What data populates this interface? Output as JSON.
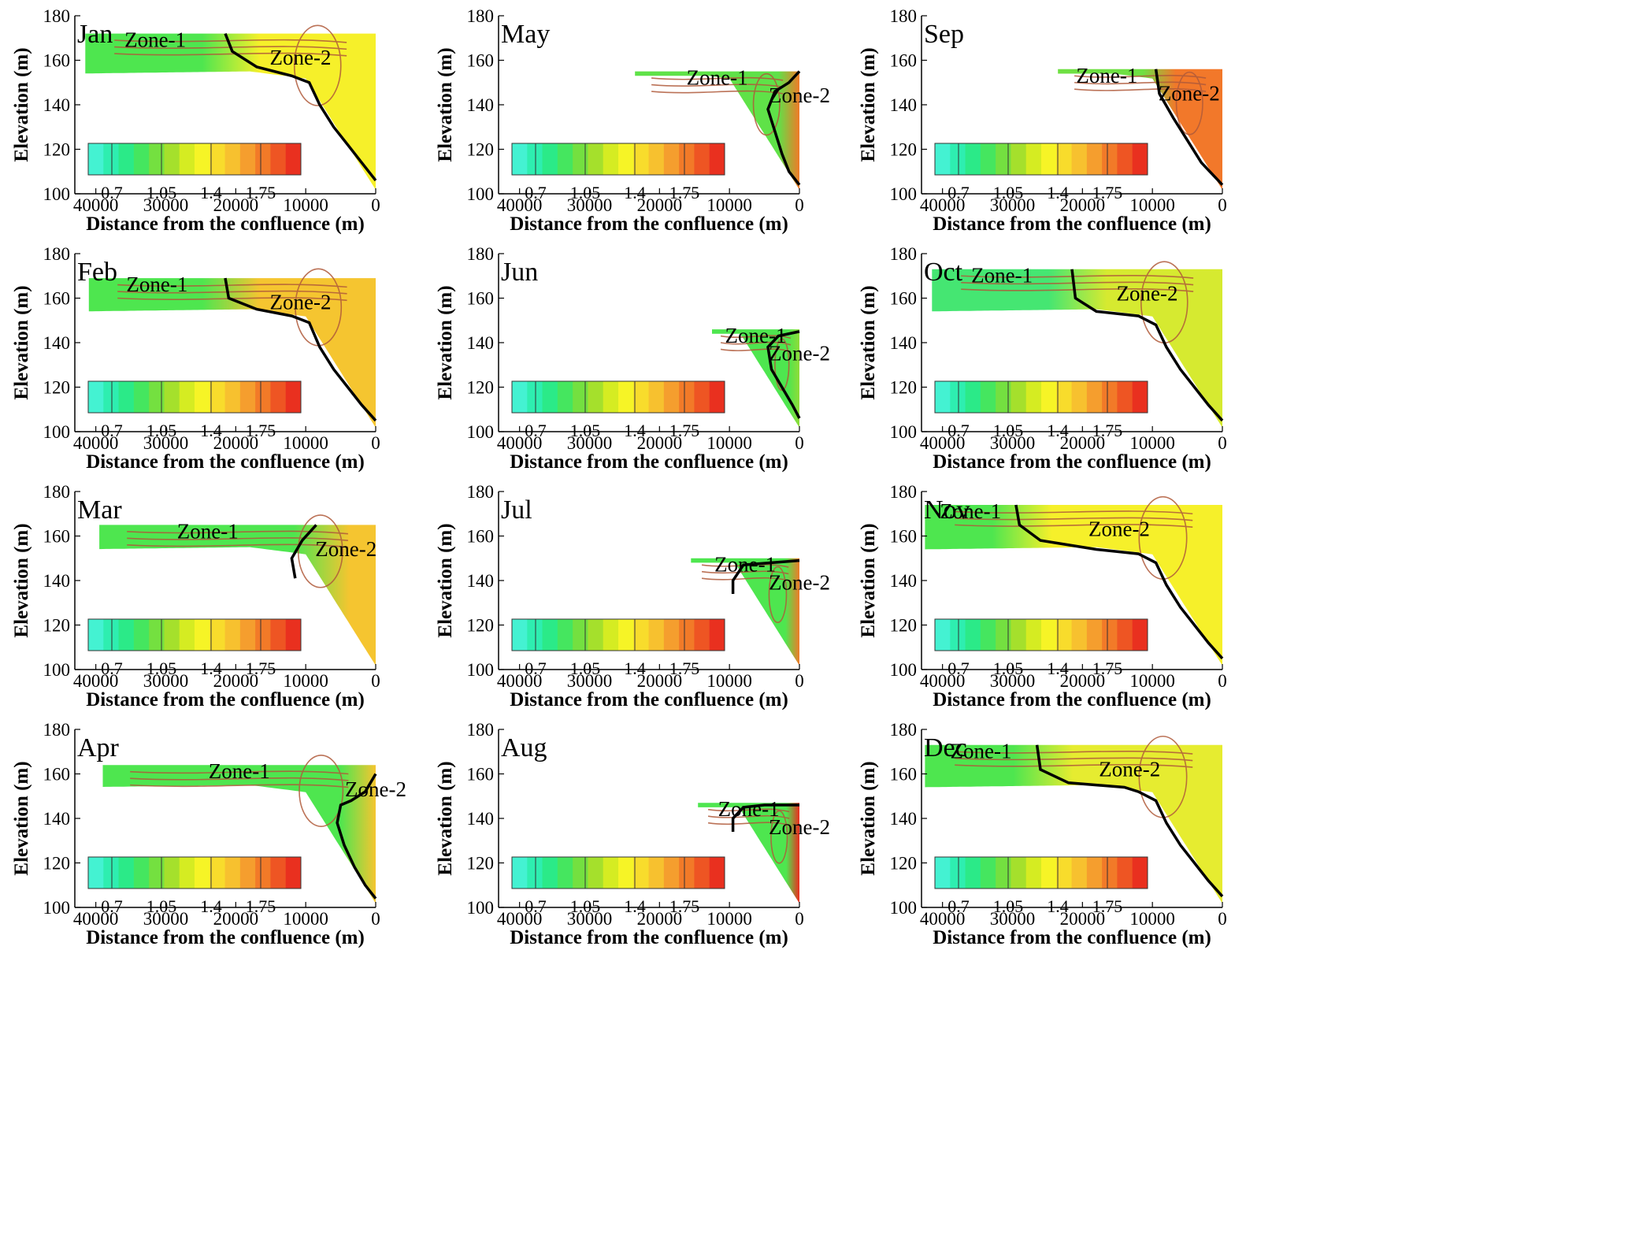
{
  "figure": {
    "tick_labels_x": [
      "40000",
      "30000",
      "20000",
      "10000",
      "0"
    ],
    "tick_labels_y": [
      "100",
      "120",
      "140",
      "160",
      "180"
    ],
    "xlabel": "Distance from the confluence (m)",
    "ylabel": "Elevation (m)",
    "colorbar_labels": [
      "0.7",
      "1.05",
      "1.4",
      "1.75"
    ],
    "colorbar_colors": [
      "#44f2d2",
      "#2eeeb0",
      "#2bea88",
      "#45e65f",
      "#74e040",
      "#a5e02c",
      "#d5ec22",
      "#f6f426",
      "#f8dc2c",
      "#f7c12f",
      "#f59e2e",
      "#f27a28",
      "#ee5523",
      "#e9301f"
    ],
    "streamline_color": "#b05a3a",
    "boundary_color": "#000000"
  },
  "chart_data": [
    {
      "type": "heatmap",
      "title": "Jan",
      "xlabel": "Distance from the confluence (m)",
      "ylabel": "Elevation (m)",
      "xlim": [
        43000,
        0
      ],
      "ylim": [
        100,
        180
      ],
      "xticks": [
        40000,
        30000,
        20000,
        10000,
        0
      ],
      "yticks": [
        100,
        120,
        140,
        160,
        180
      ],
      "surface_elevation": 172,
      "upstream_extent": 41500,
      "zone_labels": [
        "Zone-1",
        "Zone-2"
      ],
      "zone1_color": "#4ee64f",
      "zone2_color": "#f6f02a",
      "boundary": [
        [
          21500,
          172
        ],
        [
          20500,
          164
        ],
        [
          17000,
          157
        ],
        [
          12000,
          153
        ],
        [
          9500,
          150
        ],
        [
          8000,
          140
        ],
        [
          6000,
          130
        ],
        [
          4000,
          122
        ],
        [
          2000,
          114
        ],
        [
          0,
          106
        ]
      ]
    },
    {
      "type": "heatmap",
      "title": "May",
      "xlabel": "Distance from the confluence (m)",
      "ylabel": "Elevation (m)",
      "xlim": [
        43000,
        0
      ],
      "ylim": [
        100,
        180
      ],
      "xticks": [
        40000,
        30000,
        20000,
        10000,
        0
      ],
      "yticks": [
        100,
        120,
        140,
        160,
        180
      ],
      "surface_elevation": 155,
      "upstream_extent": 23500,
      "zone_labels": [
        "Zone-1",
        "Zone-2"
      ],
      "zone1_color": "#5fe248",
      "zone2_color": "#f07a28",
      "boundary": [
        [
          0,
          155
        ],
        [
          1500,
          150
        ],
        [
          3500,
          146
        ],
        [
          4500,
          138
        ],
        [
          3500,
          128
        ],
        [
          2500,
          118
        ],
        [
          1500,
          110
        ],
        [
          0,
          104
        ]
      ]
    },
    {
      "type": "heatmap",
      "title": "Sep",
      "xlabel": "Distance from the confluence (m)",
      "ylabel": "Elevation (m)",
      "xlim": [
        43000,
        0
      ],
      "ylim": [
        100,
        180
      ],
      "xticks": [
        40000,
        30000,
        20000,
        10000,
        0
      ],
      "yticks": [
        100,
        120,
        140,
        160,
        180
      ],
      "surface_elevation": 156,
      "upstream_extent": 23500,
      "zone_labels": [
        "Zone-1",
        "Zone-2"
      ],
      "zone1_color": "#6fe043",
      "zone2_color": "#f2782a",
      "boundary": [
        [
          9500,
          156
        ],
        [
          9000,
          145
        ],
        [
          7000,
          134
        ],
        [
          5000,
          124
        ],
        [
          3000,
          114
        ],
        [
          0,
          104
        ]
      ]
    },
    {
      "type": "heatmap",
      "title": "Feb",
      "xlabel": "Distance from the confluence (m)",
      "ylabel": "Elevation (m)",
      "xlim": [
        43000,
        0
      ],
      "ylim": [
        100,
        180
      ],
      "xticks": [
        40000,
        30000,
        20000,
        10000,
        0
      ],
      "yticks": [
        100,
        120,
        140,
        160,
        180
      ],
      "surface_elevation": 169,
      "upstream_extent": 41000,
      "zone_labels": [
        "Zone-1",
        "Zone-2"
      ],
      "zone1_color": "#4ee64f",
      "zone2_color": "#f5c530",
      "boundary": [
        [
          21500,
          169
        ],
        [
          21000,
          160
        ],
        [
          17000,
          155
        ],
        [
          12000,
          152
        ],
        [
          9500,
          149
        ],
        [
          8000,
          138
        ],
        [
          6000,
          128
        ],
        [
          4000,
          120
        ],
        [
          2000,
          112
        ],
        [
          0,
          105
        ]
      ]
    },
    {
      "type": "heatmap",
      "title": "Jun",
      "xlabel": "Distance from the confluence (m)",
      "ylabel": "Elevation (m)",
      "xlim": [
        43000,
        0
      ],
      "ylim": [
        100,
        180
      ],
      "xticks": [
        40000,
        30000,
        20000,
        10000,
        0
      ],
      "yticks": [
        100,
        120,
        140,
        160,
        180
      ],
      "surface_elevation": 146,
      "upstream_extent": 12500,
      "zone_labels": [
        "Zone-1",
        "Zone-2"
      ],
      "zone1_color": "#4ee64f",
      "zone2_color": "#8fdc38",
      "boundary": [
        [
          0,
          145
        ],
        [
          3000,
          143
        ],
        [
          4500,
          138
        ],
        [
          4000,
          128
        ],
        [
          2500,
          120
        ],
        [
          1000,
          112
        ],
        [
          0,
          106
        ]
      ]
    },
    {
      "type": "heatmap",
      "title": "Oct",
      "xlabel": "Distance from the confluence (m)",
      "ylabel": "Elevation (m)",
      "xlim": [
        43000,
        0
      ],
      "ylim": [
        100,
        180
      ],
      "xticks": [
        40000,
        30000,
        20000,
        10000,
        0
      ],
      "yticks": [
        100,
        120,
        140,
        160,
        180
      ],
      "surface_elevation": 173,
      "upstream_extent": 41500,
      "zone_labels": [
        "Zone-1",
        "Zone-2"
      ],
      "zone1_color": "#45e672",
      "zone2_color": "#d6ea30",
      "boundary": [
        [
          21500,
          173
        ],
        [
          21000,
          160
        ],
        [
          18000,
          154
        ],
        [
          12000,
          152
        ],
        [
          9500,
          148
        ],
        [
          8000,
          138
        ],
        [
          6000,
          128
        ],
        [
          4000,
          120
        ],
        [
          2000,
          112
        ],
        [
          0,
          105
        ]
      ]
    },
    {
      "type": "heatmap",
      "title": "Mar",
      "xlabel": "Distance from the confluence (m)",
      "ylabel": "Elevation (m)",
      "xlim": [
        43000,
        0
      ],
      "ylim": [
        100,
        180
      ],
      "xticks": [
        40000,
        30000,
        20000,
        10000,
        0
      ],
      "yticks": [
        100,
        120,
        140,
        160,
        180
      ],
      "surface_elevation": 165,
      "upstream_extent": 39500,
      "zone_labels": [
        "Zone-1",
        "Zone-2"
      ],
      "zone1_color": "#4ee64f",
      "zone2_color": "#f5c530",
      "boundary": [
        [
          8500,
          165
        ],
        [
          10500,
          158
        ],
        [
          12000,
          150
        ],
        [
          11500,
          141
        ]
      ]
    },
    {
      "type": "heatmap",
      "title": "Jul",
      "xlabel": "Distance from the confluence (m)",
      "ylabel": "Elevation (m)",
      "xlim": [
        43000,
        0
      ],
      "ylim": [
        100,
        180
      ],
      "xticks": [
        40000,
        30000,
        20000,
        10000,
        0
      ],
      "yticks": [
        100,
        120,
        140,
        160,
        180
      ],
      "surface_elevation": 150,
      "upstream_extent": 15500,
      "zone_labels": [
        "Zone-1",
        "Zone-2"
      ],
      "zone1_color": "#4ee64f",
      "zone2_color": "#f07a28",
      "boundary": [
        [
          0,
          149
        ],
        [
          4000,
          148
        ],
        [
          8000,
          147
        ],
        [
          9500,
          140
        ],
        [
          9500,
          134
        ]
      ]
    },
    {
      "type": "heatmap",
      "title": "Nov",
      "xlabel": "Distance from the confluence (m)",
      "ylabel": "Elevation (m)",
      "xlim": [
        43000,
        0
      ],
      "ylim": [
        100,
        180
      ],
      "xticks": [
        40000,
        30000,
        20000,
        10000,
        0
      ],
      "yticks": [
        100,
        120,
        140,
        160,
        180
      ],
      "surface_elevation": 174,
      "upstream_extent": 42500,
      "zone_labels": [
        "Zone-1",
        "Zone-2"
      ],
      "zone1_color": "#4ee64f",
      "zone2_color": "#f6f02a",
      "boundary": [
        [
          29500,
          174
        ],
        [
          29000,
          165
        ],
        [
          26000,
          158
        ],
        [
          18000,
          154
        ],
        [
          12000,
          152
        ],
        [
          9500,
          148
        ],
        [
          8000,
          138
        ],
        [
          6000,
          128
        ],
        [
          4000,
          120
        ],
        [
          2000,
          112
        ],
        [
          0,
          105
        ]
      ]
    },
    {
      "type": "heatmap",
      "title": "Apr",
      "xlabel": "Distance from the confluence (m)",
      "ylabel": "Elevation (m)",
      "xlim": [
        43000,
        0
      ],
      "ylim": [
        100,
        180
      ],
      "xticks": [
        40000,
        30000,
        20000,
        10000,
        0
      ],
      "yticks": [
        100,
        120,
        140,
        160,
        180
      ],
      "surface_elevation": 164,
      "upstream_extent": 39000,
      "zone_labels": [
        "Zone-1",
        "Zone-2"
      ],
      "zone1_color": "#4ee64f",
      "zone2_color": "#f5c530",
      "boundary": [
        [
          0,
          160
        ],
        [
          1500,
          152
        ],
        [
          3500,
          148
        ],
        [
          5000,
          146
        ],
        [
          5500,
          138
        ],
        [
          4500,
          128
        ],
        [
          3000,
          118
        ],
        [
          1500,
          110
        ],
        [
          0,
          104
        ]
      ]
    },
    {
      "type": "heatmap",
      "title": "Aug",
      "xlabel": "Distance from the confluence (m)",
      "ylabel": "Elevation (m)",
      "xlim": [
        43000,
        0
      ],
      "ylim": [
        100,
        180
      ],
      "xticks": [
        40000,
        30000,
        20000,
        10000,
        0
      ],
      "yticks": [
        100,
        120,
        140,
        160,
        180
      ],
      "surface_elevation": 147,
      "upstream_extent": 14500,
      "zone_labels": [
        "Zone-1",
        "Zone-2"
      ],
      "zone1_color": "#4ee64f",
      "zone2_color": "#ee2a1e",
      "boundary": [
        [
          0,
          146
        ],
        [
          5000,
          146
        ],
        [
          8000,
          145
        ],
        [
          9500,
          140
        ],
        [
          9500,
          134
        ]
      ]
    },
    {
      "type": "heatmap",
      "title": "Dec",
      "xlabel": "Distance from the confluence (m)",
      "ylabel": "Elevation (m)",
      "xlim": [
        43000,
        0
      ],
      "ylim": [
        100,
        180
      ],
      "xticks": [
        40000,
        30000,
        20000,
        10000,
        0
      ],
      "yticks": [
        100,
        120,
        140,
        160,
        180
      ],
      "surface_elevation": 173,
      "upstream_extent": 42500,
      "zone_labels": [
        "Zone-1",
        "Zone-2"
      ],
      "zone1_color": "#4ee64f",
      "zone2_color": "#e6ec30",
      "boundary": [
        [
          26500,
          173
        ],
        [
          26000,
          162
        ],
        [
          22000,
          156
        ],
        [
          14000,
          154
        ],
        [
          12000,
          152
        ],
        [
          9500,
          148
        ],
        [
          8000,
          138
        ],
        [
          6000,
          128
        ],
        [
          4000,
          120
        ],
        [
          2000,
          112
        ],
        [
          0,
          105
        ]
      ]
    }
  ]
}
